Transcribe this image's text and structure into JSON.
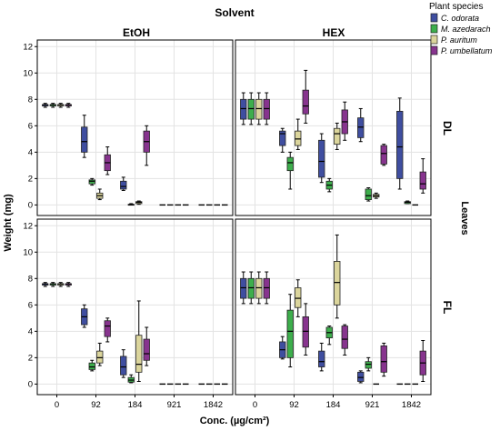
{
  "chart_data": {
    "type": "boxplot",
    "title": "Solvent",
    "xlabel": "Conc. (µg/cm²)",
    "ylabel": "Weight (mg)",
    "right_title": "Leaves",
    "categories": [
      "0",
      "92",
      "184",
      "921",
      "1842"
    ],
    "y_ticks": [
      "0",
      "2",
      "4",
      "6",
      "8",
      "10",
      "12"
    ],
    "ylim": [
      -0.8,
      12.5
    ],
    "grid": true,
    "columns": [
      "EtOH",
      "HEX"
    ],
    "rows": [
      "DL",
      "FL"
    ],
    "legend": {
      "title": "Plant species",
      "placement": "top-right",
      "entries": [
        {
          "name": "C. odorata",
          "color": "#3f4ea0"
        },
        {
          "name": "M. azedarach",
          "color": "#3dae4c"
        },
        {
          "name": "P. auritum",
          "color": "#dbd59c"
        },
        {
          "name": "P. umbellatum",
          "color": "#87348e"
        }
      ]
    },
    "panels": [
      {
        "column": "EtOH",
        "row": "DL",
        "boxes": [
          [
            [
              7.4,
              7.5,
              7.6,
              7.6,
              7.7
            ],
            [
              7.4,
              7.5,
              7.6,
              7.6,
              7.7
            ],
            [
              7.4,
              7.5,
              7.6,
              7.6,
              7.7
            ],
            [
              7.4,
              7.5,
              7.6,
              7.6,
              7.7
            ]
          ],
          [
            [
              3.6,
              4.0,
              4.8,
              5.9,
              6.8
            ],
            [
              1.5,
              1.6,
              1.8,
              1.9,
              2.0
            ],
            [
              0.4,
              0.5,
              0.7,
              0.9,
              1.2
            ],
            [
              2.3,
              2.6,
              3.2,
              3.8,
              4.4
            ]
          ],
          [
            [
              1.1,
              1.2,
              1.4,
              1.8,
              2.1
            ],
            [
              0.0,
              0.0,
              0.0,
              0.05,
              0.1
            ],
            [
              0.05,
              0.1,
              0.2,
              0.25,
              0.3
            ],
            [
              3.0,
              4.0,
              4.8,
              5.6,
              6.0
            ]
          ],
          [
            [
              0,
              0,
              0,
              0,
              0
            ],
            [
              0,
              0,
              0,
              0,
              0
            ],
            [
              0,
              0,
              0,
              0,
              0
            ],
            [
              0,
              0,
              0,
              0,
              0
            ]
          ],
          [
            [
              0,
              0,
              0,
              0,
              0
            ],
            [
              0,
              0,
              0,
              0,
              0
            ],
            [
              0,
              0,
              0,
              0,
              0
            ],
            [
              0,
              0,
              0,
              0,
              0
            ]
          ]
        ]
      },
      {
        "column": "HEX",
        "row": "DL",
        "boxes": [
          [
            [
              6.1,
              6.5,
              7.3,
              8.0,
              8.5
            ],
            [
              6.1,
              6.5,
              7.3,
              8.0,
              8.5
            ],
            [
              6.1,
              6.5,
              7.3,
              8.0,
              8.5
            ],
            [
              6.1,
              6.5,
              7.3,
              8.0,
              8.5
            ]
          ],
          [
            [
              4.0,
              4.5,
              5.4,
              5.6,
              5.8
            ],
            [
              1.2,
              2.6,
              3.2,
              3.6,
              4.0
            ],
            [
              4.2,
              4.5,
              5.0,
              5.6,
              6.5
            ],
            [
              6.2,
              6.9,
              7.5,
              8.7,
              10.2
            ]
          ],
          [
            [
              1.7,
              2.1,
              3.3,
              4.9,
              5.4
            ],
            [
              1.0,
              1.2,
              1.5,
              1.8,
              2.0
            ],
            [
              4.2,
              4.6,
              5.4,
              5.8,
              6.2
            ],
            [
              4.9,
              5.4,
              6.3,
              7.2,
              7.8
            ]
          ],
          [
            [
              4.8,
              5.1,
              5.9,
              6.6,
              7.3
            ],
            [
              0.3,
              0.4,
              0.7,
              1.2,
              1.3
            ],
            [
              0.5,
              0.6,
              0.7,
              0.8,
              0.9
            ],
            [
              3.0,
              3.1,
              3.9,
              4.5,
              4.6
            ]
          ],
          [
            [
              1.2,
              2.0,
              4.4,
              7.1,
              8.1
            ],
            [
              0.1,
              0.1,
              0.2,
              0.25,
              0.3
            ],
            [
              0,
              0,
              0,
              0,
              0
            ],
            [
              0.9,
              1.2,
              1.6,
              2.5,
              3.5
            ]
          ]
        ]
      },
      {
        "column": "EtOH",
        "row": "FL",
        "boxes": [
          [
            [
              7.4,
              7.5,
              7.6,
              7.6,
              7.7
            ],
            [
              7.4,
              7.5,
              7.6,
              7.6,
              7.7
            ],
            [
              7.4,
              7.5,
              7.6,
              7.6,
              7.7
            ],
            [
              7.4,
              7.5,
              7.6,
              7.6,
              7.7
            ]
          ],
          [
            [
              4.3,
              4.5,
              5.1,
              5.7,
              6.0
            ],
            [
              1.0,
              1.1,
              1.3,
              1.6,
              1.8
            ],
            [
              1.4,
              1.6,
              2.0,
              2.5,
              3.1
            ],
            [
              3.2,
              3.6,
              4.4,
              4.8,
              5.0
            ]
          ],
          [
            [
              0.5,
              0.7,
              1.3,
              2.1,
              2.6
            ],
            [
              0.1,
              0.15,
              0.3,
              0.5,
              0.7
            ],
            [
              0.2,
              0.9,
              1.5,
              3.7,
              6.3
            ],
            [
              1.4,
              1.8,
              2.3,
              3.4,
              4.3
            ]
          ],
          [
            [
              0,
              0,
              0,
              0,
              0
            ],
            [
              0,
              0,
              0,
              0,
              0
            ],
            [
              0,
              0,
              0,
              0,
              0
            ],
            [
              0,
              0,
              0,
              0,
              0
            ]
          ],
          [
            [
              0,
              0,
              0,
              0,
              0
            ],
            [
              0,
              0,
              0,
              0,
              0
            ],
            [
              0,
              0,
              0,
              0,
              0
            ],
            [
              0,
              0,
              0,
              0,
              0
            ]
          ]
        ]
      },
      {
        "column": "HEX",
        "row": "FL",
        "boxes": [
          [
            [
              6.1,
              6.5,
              7.3,
              8.0,
              8.5
            ],
            [
              6.1,
              6.5,
              7.3,
              8.0,
              8.5
            ],
            [
              6.1,
              6.5,
              7.3,
              8.0,
              8.5
            ],
            [
              6.1,
              6.5,
              7.3,
              8.0,
              8.5
            ]
          ],
          [
            [
              1.9,
              2.0,
              2.6,
              3.2,
              3.6
            ],
            [
              1.3,
              2.0,
              4.0,
              5.6,
              6.8
            ],
            [
              5.1,
              5.8,
              6.5,
              7.3,
              7.9
            ],
            [
              2.2,
              2.8,
              4.0,
              5.1,
              6.1
            ]
          ],
          [
            [
              1.0,
              1.3,
              1.7,
              2.5,
              3.1
            ],
            [
              3.0,
              3.5,
              3.9,
              4.3,
              4.4
            ],
            [
              5.0,
              6.0,
              7.7,
              9.3,
              11.3
            ],
            [
              2.2,
              2.7,
              3.4,
              4.4,
              4.5
            ]
          ],
          [
            [
              0.1,
              0.2,
              0.5,
              0.9,
              1.0
            ],
            [
              1.0,
              1.2,
              1.5,
              1.7,
              2.0
            ],
            [
              0,
              0,
              0,
              0,
              0
            ],
            [
              0.6,
              0.9,
              1.7,
              2.9,
              3.1
            ]
          ],
          [
            [
              0,
              0,
              0,
              0,
              0
            ],
            [
              0,
              0,
              0,
              0,
              0
            ],
            [
              0,
              0,
              0,
              0,
              0
            ],
            [
              0.2,
              0.7,
              1.6,
              2.5,
              3.3
            ]
          ]
        ]
      }
    ]
  }
}
